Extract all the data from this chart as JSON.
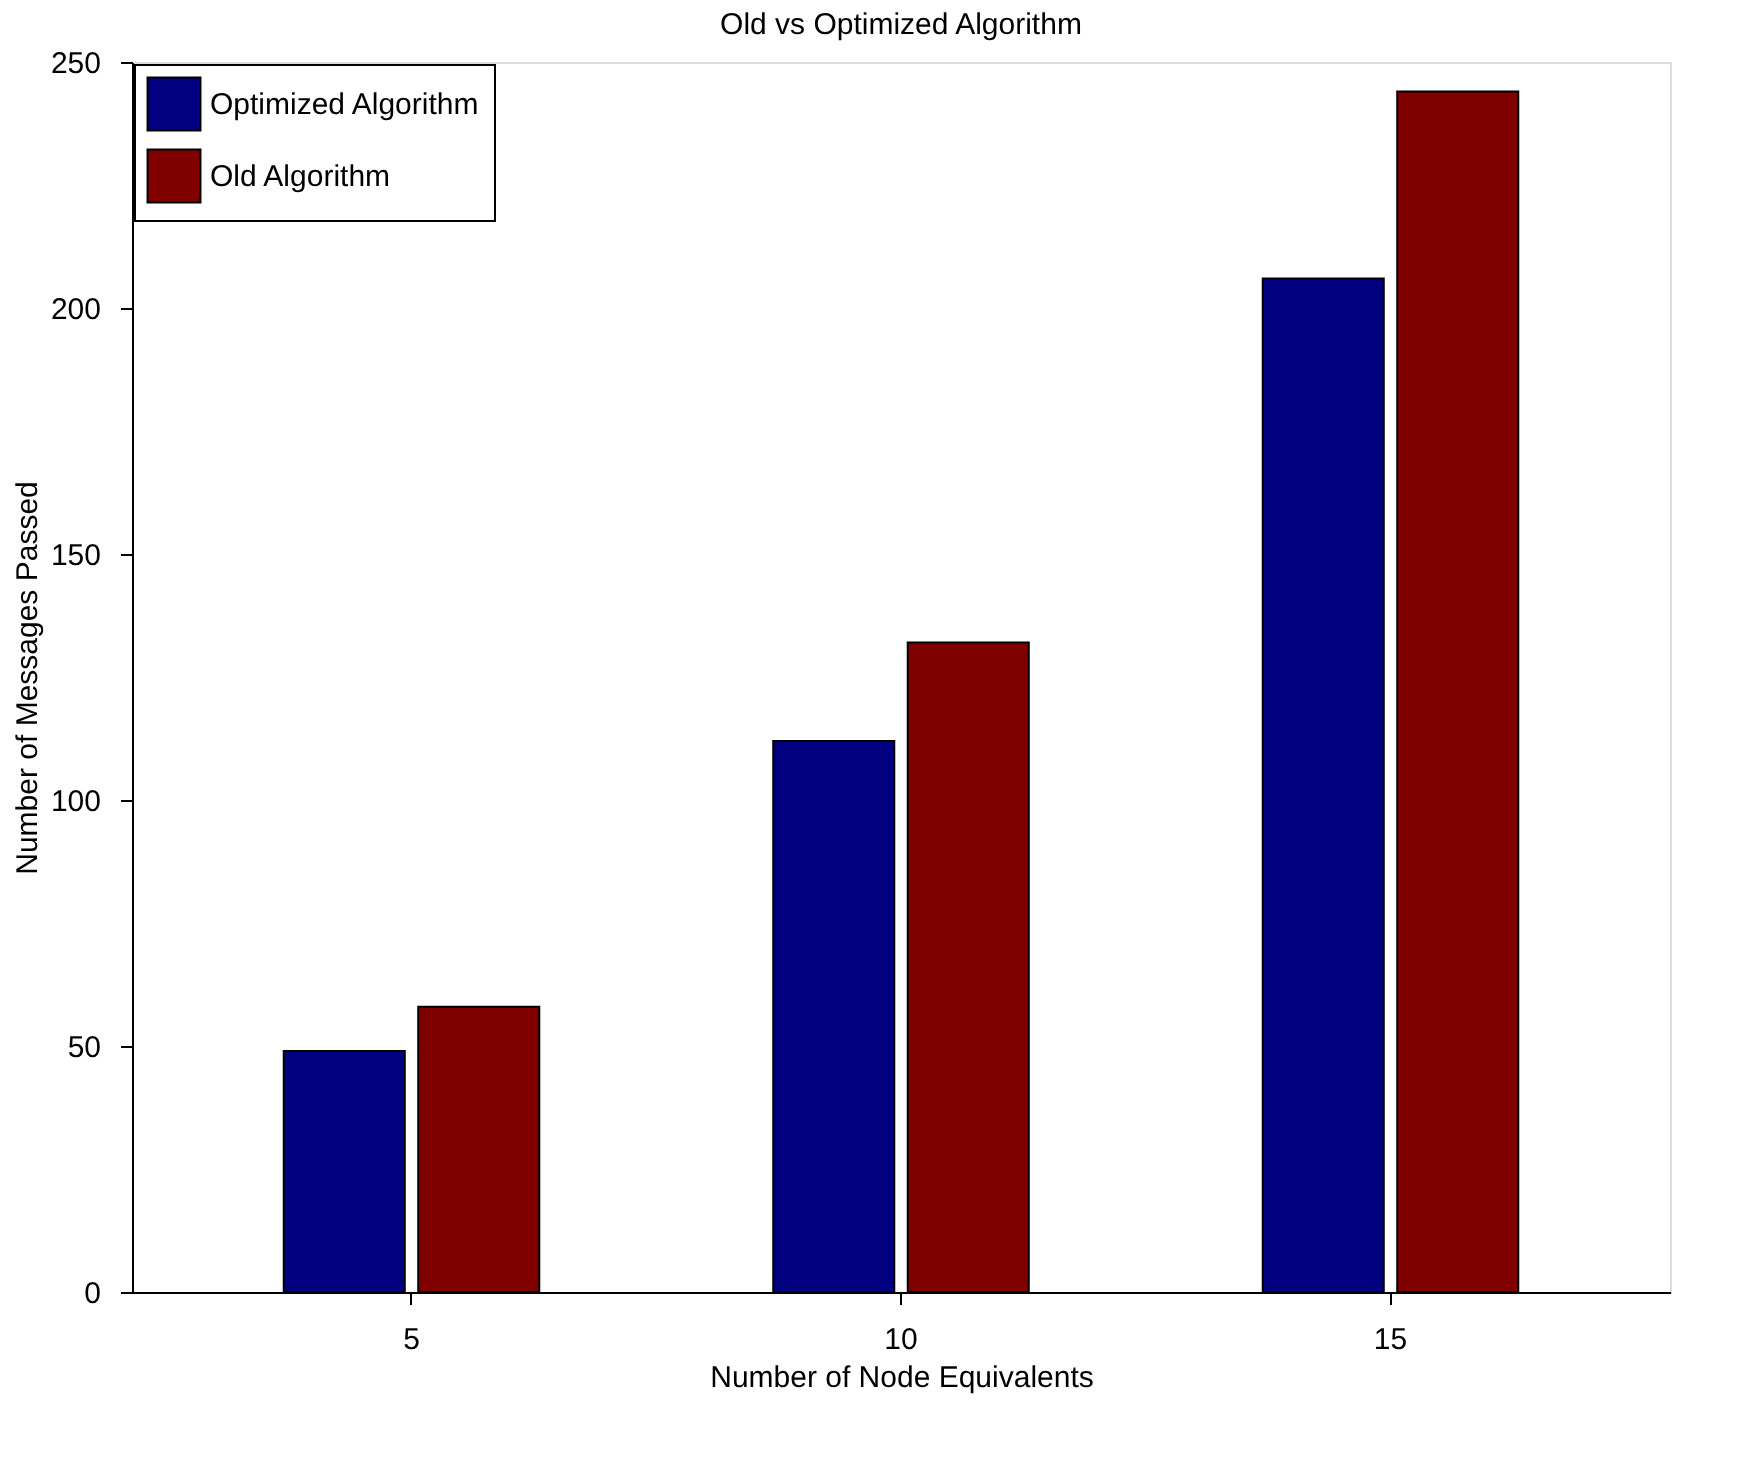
{
  "chart_data": {
    "type": "bar",
    "title": "Old vs Optimized Algorithm",
    "xlabel": "Number of Node Equivalents",
    "ylabel": "Number of Messages Passed",
    "categories": [
      "5",
      "10",
      "15"
    ],
    "series": [
      {
        "name": "Optimized Algorithm",
        "color": "#000080",
        "values": [
          49,
          112,
          206
        ]
      },
      {
        "name": "Old Algorithm",
        "color": "#800000",
        "values": [
          58,
          132,
          244
        ]
      }
    ],
    "ylim": [
      0,
      250
    ],
    "yticks": [
      0,
      50,
      100,
      150,
      200,
      250
    ],
    "grid": false,
    "legend": "top left"
  }
}
